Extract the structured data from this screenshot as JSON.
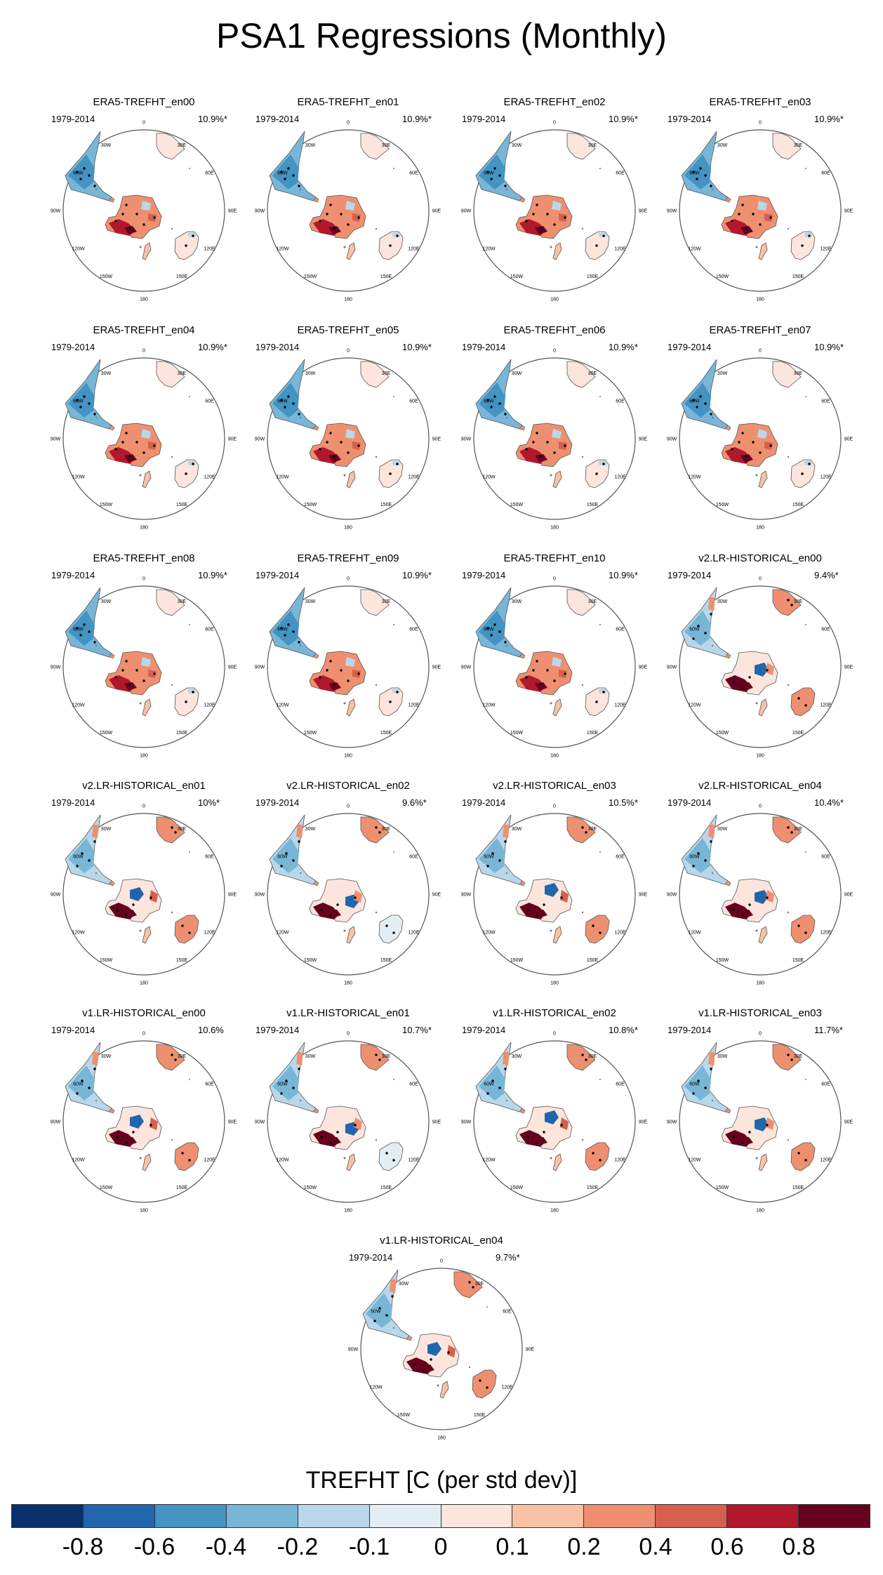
{
  "title": "PSA1 Regressions (Monthly)",
  "chart_data": {
    "type": "heatmap",
    "title": "PSA1 Regressions (Monthly)",
    "variable_label": "TREFHT [C (per std dev)]",
    "period": "1979-2014",
    "map_projection": "south polar stereographic",
    "longitude_labels": [
      "0",
      "30E",
      "60E",
      "90E",
      "120E",
      "150E",
      "180",
      "150W",
      "120W",
      "90W",
      "60W",
      "30W"
    ],
    "panels": [
      {
        "name": "ERA5-TREFHT_en00",
        "pct": "10.9%*",
        "type": "era5"
      },
      {
        "name": "ERA5-TREFHT_en01",
        "pct": "10.9%*",
        "type": "era5"
      },
      {
        "name": "ERA5-TREFHT_en02",
        "pct": "10.9%*",
        "type": "era5"
      },
      {
        "name": "ERA5-TREFHT_en03",
        "pct": "10.9%*",
        "type": "era5"
      },
      {
        "name": "ERA5-TREFHT_en04",
        "pct": "10.9%*",
        "type": "era5"
      },
      {
        "name": "ERA5-TREFHT_en05",
        "pct": "10.9%*",
        "type": "era5"
      },
      {
        "name": "ERA5-TREFHT_en06",
        "pct": "10.9%*",
        "type": "era5"
      },
      {
        "name": "ERA5-TREFHT_en07",
        "pct": "10.9%*",
        "type": "era5"
      },
      {
        "name": "ERA5-TREFHT_en08",
        "pct": "10.9%*",
        "type": "era5"
      },
      {
        "name": "ERA5-TREFHT_en09",
        "pct": "10.9%*",
        "type": "era5"
      },
      {
        "name": "ERA5-TREFHT_en10",
        "pct": "10.9%*",
        "type": "era5"
      },
      {
        "name": "v2.LR-HISTORICAL_en00",
        "pct": "9.4%*",
        "type": "model"
      },
      {
        "name": "v2.LR-HISTORICAL_en01",
        "pct": "10%*",
        "type": "model"
      },
      {
        "name": "v2.LR-HISTORICAL_en02",
        "pct": "9.6%*",
        "type": "model"
      },
      {
        "name": "v2.LR-HISTORICAL_en03",
        "pct": "10.5%*",
        "type": "model"
      },
      {
        "name": "v2.LR-HISTORICAL_en04",
        "pct": "10.4%*",
        "type": "model"
      },
      {
        "name": "v1.LR-HISTORICAL_en00",
        "pct": "10.6%",
        "type": "model"
      },
      {
        "name": "v1.LR-HISTORICAL_en01",
        "pct": "10.7%*",
        "type": "model"
      },
      {
        "name": "v1.LR-HISTORICAL_en02",
        "pct": "10.8%*",
        "type": "model"
      },
      {
        "name": "v1.LR-HISTORICAL_en03",
        "pct": "11.7%*",
        "type": "model"
      },
      {
        "name": "v1.LR-HISTORICAL_en04",
        "pct": "9.7%*",
        "type": "model"
      }
    ],
    "colorbar": {
      "colors": [
        "#08306b",
        "#2166ac",
        "#4393c3",
        "#78b6d7",
        "#b9d7ea",
        "#e3edf4",
        "#fbe5dc",
        "#f9c2a5",
        "#ee9070",
        "#d6604d",
        "#b2182b",
        "#67001f"
      ],
      "tick_labels": [
        "-0.8",
        "-0.6",
        "-0.4",
        "-0.2",
        "-0.1",
        "0",
        "0.1",
        "0.2",
        "0.4",
        "0.6",
        "0.8"
      ]
    }
  }
}
